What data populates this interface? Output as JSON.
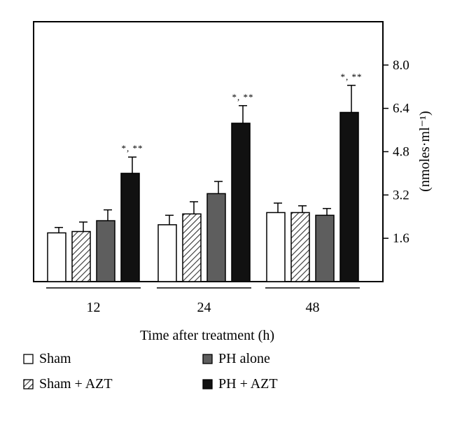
{
  "chart_data": {
    "type": "bar",
    "xlabel": "Time after treatment (h)",
    "ylabel": "(nmoles·ml⁻¹)",
    "ylim": [
      0,
      9.6
    ],
    "y_axis_side": "right",
    "yticks": [
      "1.6",
      "3.2",
      "4.8",
      "6.4",
      "8.0"
    ],
    "ytick_values": [
      1.6,
      3.2,
      4.8,
      6.4,
      8.0
    ],
    "categories": [
      "12",
      "24",
      "48"
    ],
    "series": [
      {
        "name": "Sham",
        "values": [
          1.8,
          2.1,
          2.55
        ],
        "errors": [
          0.2,
          0.35,
          0.35
        ],
        "color": "#ffffff",
        "pattern": "none"
      },
      {
        "name": "Sham + AZT",
        "values": [
          1.85,
          2.5,
          2.55
        ],
        "errors": [
          0.35,
          0.45,
          0.25
        ],
        "color": "#ffffff",
        "pattern": "hatch"
      },
      {
        "name": "PH alone",
        "values": [
          2.25,
          3.25,
          2.45
        ],
        "errors": [
          0.4,
          0.45,
          0.25
        ],
        "color": "#5e5e5e",
        "pattern": "none"
      },
      {
        "name": "PH + AZT",
        "values": [
          4.0,
          5.85,
          6.25
        ],
        "errors": [
          0.6,
          0.65,
          1.0
        ],
        "color": "#111111",
        "pattern": "none"
      }
    ],
    "annotations": [
      {
        "category": "12",
        "series": "PH + AZT",
        "text": "*, **"
      },
      {
        "category": "24",
        "series": "PH + AZT",
        "text": "*, **"
      },
      {
        "category": "48",
        "series": "PH + AZT",
        "text": "*, **"
      }
    ],
    "legend_placement": "bottom",
    "grid": false
  }
}
